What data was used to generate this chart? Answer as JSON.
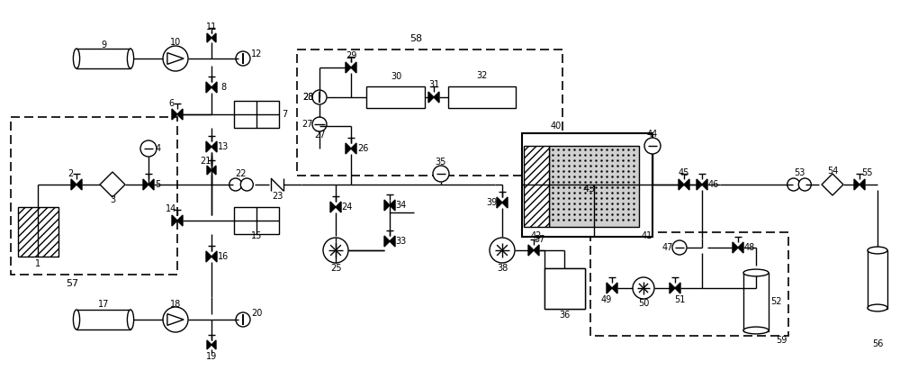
{
  "figsize": [
    10.0,
    4.11
  ],
  "dpi": 100,
  "bg_color": "#ffffff",
  "lc": "#000000",
  "lw": 1.0
}
